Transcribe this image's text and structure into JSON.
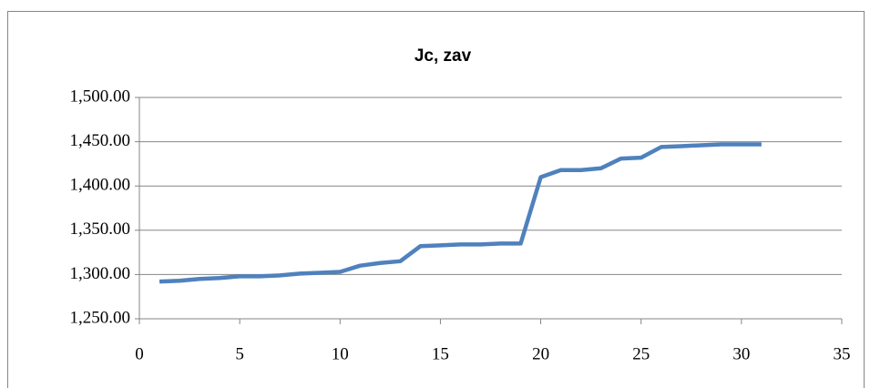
{
  "chart_data": {
    "type": "line",
    "title": "Jc, zav",
    "x": [
      1,
      2,
      3,
      4,
      5,
      6,
      7,
      8,
      9,
      10,
      11,
      12,
      13,
      14,
      15,
      16,
      17,
      18,
      19,
      20,
      21,
      22,
      23,
      24,
      25,
      26,
      27,
      28,
      29,
      30,
      31
    ],
    "series": [
      {
        "name": "Jc, zav",
        "color": "#4f81bd",
        "values": [
          1292,
          1293,
          1295,
          1296,
          1298,
          1298,
          1299,
          1301,
          1302,
          1303,
          1310,
          1313,
          1315,
          1332,
          1333,
          1334,
          1334,
          1335,
          1335,
          1410,
          1418,
          1418,
          1420,
          1431,
          1432,
          1444,
          1445,
          1446,
          1447,
          1447,
          1447
        ]
      }
    ],
    "xlim": [
      0,
      35
    ],
    "xticks": [
      0,
      5,
      10,
      15,
      20,
      25,
      30,
      35
    ],
    "ylim": [
      1250,
      1500
    ],
    "yticks": [
      {
        "value": 1250,
        "label": "1,250.00"
      },
      {
        "value": 1300,
        "label": "1,300.00"
      },
      {
        "value": 1350,
        "label": "1,350.00"
      },
      {
        "value": 1400,
        "label": "1,400.00"
      },
      {
        "value": 1450,
        "label": "1,450.00"
      },
      {
        "value": 1500,
        "label": "1,500.00"
      }
    ],
    "grid": true
  }
}
